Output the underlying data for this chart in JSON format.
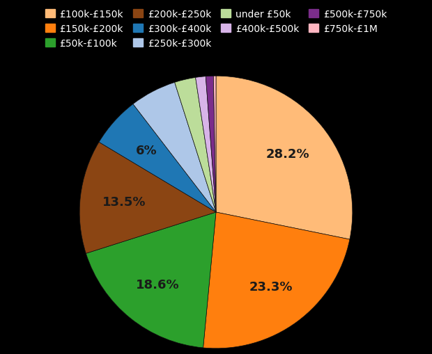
{
  "slices": [
    {
      "label": "£100k-£150k",
      "value": 28.2,
      "color": "#FFBB78"
    },
    {
      "label": "£150k-£200k",
      "value": 23.3,
      "color": "#FF7F0E"
    },
    {
      "label": "£50k-£100k",
      "value": 18.6,
      "color": "#2CA02C"
    },
    {
      "label": "£200k-£250k",
      "value": 13.5,
      "color": "#8B4513"
    },
    {
      "label": "£300k-£400k",
      "value": 6.0,
      "color": "#1F77B4"
    },
    {
      "label": "£250k-£300k",
      "value": 5.5,
      "color": "#AEC7E8"
    },
    {
      "label": "under £50k",
      "value": 2.5,
      "color": "#BCDD9A"
    },
    {
      "label": "£400k-£500k",
      "value": 1.2,
      "color": "#D8B4E8"
    },
    {
      "label": "£500k-£750k",
      "value": 0.9,
      "color": "#7B2D8B"
    },
    {
      "label": "£750k-£1M",
      "value": 0.3,
      "color": "#FFB6C1"
    }
  ],
  "legend_order": [
    "£100k-£150k",
    "£150k-£200k",
    "£50k-£100k",
    "£200k-£250k",
    "£300k-£400k",
    "£250k-£300k",
    "under £50k",
    "£400k-£500k",
    "£500k-£750k",
    "£750k-£1M"
  ],
  "background_color": "#000000",
  "text_color": "#ffffff",
  "label_color": "#1a1a1a",
  "label_fontsize": 13,
  "legend_fontsize": 10,
  "labeled_slices": [
    28.2,
    23.3,
    18.6,
    13.5,
    6.0
  ],
  "labeled_fmt": {
    "28.2": "28.2%",
    "23.3": "23.3%",
    "18.6": "18.6%",
    "13.5": "13.5%",
    "6.0": "6%"
  }
}
